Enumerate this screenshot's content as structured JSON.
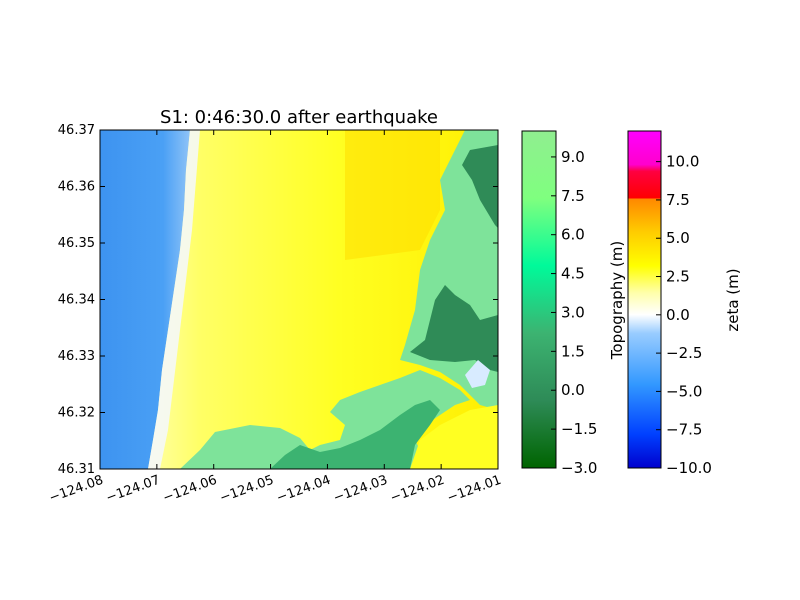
{
  "chart_data": {
    "type": "heatmap",
    "title": "S1: 0:46:30.0 after earthquake",
    "xlabel": "",
    "ylabel": "",
    "xlim": [
      -124.08,
      -124.01
    ],
    "ylim": [
      46.31,
      46.37
    ],
    "x_ticks": [
      "−124.08",
      "−124.07",
      "−124.06",
      "−124.05",
      "−124.04",
      "−124.03",
      "−124.02",
      "−124.01"
    ],
    "x_tick_values": [
      -124.08,
      -124.07,
      -124.06,
      -124.05,
      -124.04,
      -124.03,
      -124.02,
      -124.01
    ],
    "y_ticks": [
      "46.31",
      "46.32",
      "46.33",
      "46.34",
      "46.35",
      "46.36",
      "46.37"
    ],
    "y_tick_values": [
      46.31,
      46.32,
      46.33,
      46.34,
      46.35,
      46.36,
      46.37
    ],
    "grid": false,
    "colorbars": [
      {
        "label": "Topography (m)",
        "range": [
          -3.0,
          10.0
        ],
        "ticks": [
          "−3.0",
          "−1.5",
          "0.0",
          "1.5",
          "3.0",
          "4.5",
          "6.0",
          "7.5",
          "9.0"
        ],
        "tick_values": [
          -3.0,
          -1.5,
          0.0,
          1.5,
          3.0,
          4.5,
          6.0,
          7.5,
          9.0
        ],
        "colors": [
          "#006400",
          "#2e8b57",
          "#3cb371",
          "#00fa9a",
          "#7fff7f",
          "#90ee90"
        ]
      },
      {
        "label": "zeta (m)",
        "range": [
          -10.0,
          12.0
        ],
        "ticks": [
          "−10.0",
          "−7.5",
          "−5.0",
          "−2.5",
          "0.0",
          "2.5",
          "5.0",
          "7.5",
          "10.0"
        ],
        "tick_values": [
          -10.0,
          -7.5,
          -5.0,
          -2.5,
          0.0,
          2.5,
          5.0,
          7.5,
          10.0
        ],
        "colors": [
          "#0000cd",
          "#0080ff",
          "#ffffff",
          "#ffff00",
          "#ff8000",
          "#ff0000",
          "#ff00ff"
        ]
      }
    ],
    "colors": {
      "ocean": "#3399ff",
      "inundation": "#ffff33",
      "land_low": "#7fe39a",
      "land_high": "#2e8b57",
      "surf": "#f5f8ff"
    }
  }
}
